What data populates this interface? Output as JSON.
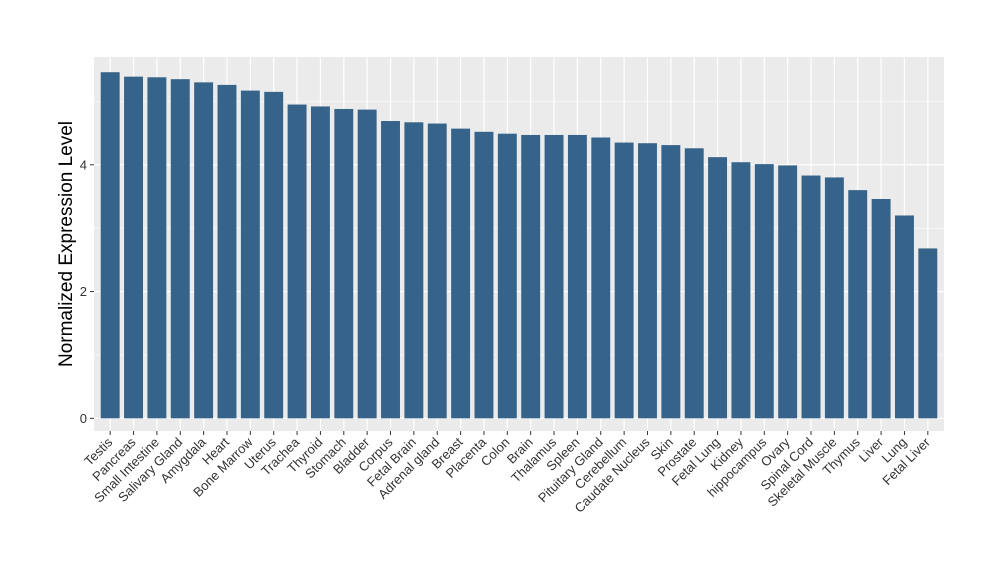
{
  "chart_data": {
    "type": "bar",
    "ylabel": "Normalized Expression Level",
    "xlabel": "",
    "ylim": [
      -0.2,
      5.7
    ],
    "yticks": [
      0,
      2,
      4
    ],
    "grid": true,
    "bar_color": "#35638A",
    "panel_color": "#EBEBEB",
    "categories": [
      "Testis",
      "Pancreas",
      "Small Intestine",
      "Salivary Gland",
      "Amygdala",
      "Heart",
      "Bone Marrow",
      "Uterus",
      "Trachea",
      "Thyroid",
      "Stomach",
      "Bladder",
      "Corpus",
      "Fetal Brain",
      "Adrenal gland",
      "Breast",
      "Placenta",
      "Colon",
      "Brain",
      "Thalamus",
      "Spleen",
      "Pituitary Gland",
      "Cerebellum",
      "Caudate Nucleus",
      "Skin",
      "Prostate",
      "Fetal Lung",
      "Kidney",
      "hippocampus",
      "Ovary",
      "Spinal Cord",
      "Skeletal Muscle",
      "Thymus",
      "Liver",
      "Lung",
      "Fetal Liver"
    ],
    "values": [
      5.46,
      5.39,
      5.38,
      5.35,
      5.3,
      5.26,
      5.17,
      5.15,
      4.95,
      4.92,
      4.88,
      4.87,
      4.69,
      4.67,
      4.65,
      4.57,
      4.52,
      4.49,
      4.47,
      4.47,
      4.47,
      4.43,
      4.35,
      4.34,
      4.31,
      4.26,
      4.12,
      4.04,
      4.01,
      3.99,
      3.83,
      3.8,
      3.6,
      3.46,
      3.2,
      2.68
    ]
  }
}
